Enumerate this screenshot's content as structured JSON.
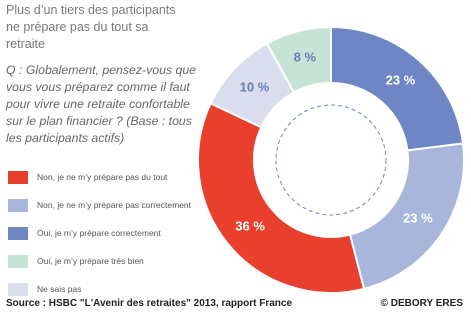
{
  "chart_data": {
    "type": "pie",
    "title": "Plus d’un tiers des participants ne prépare pas du tout sa retraite",
    "subtitle": "Q : Globalement, pensez-vous que vous vous préparez comme il faut pour vivre une retraite confortable sur le plan financier ? (Base : tous les participants actifs)",
    "categories": [
      "Non, je ne m’y prépare pas du tout",
      "Non, je ne m’y prépare pas correctement",
      "Oui, je m’y prépare correctement",
      "Oui, je m’y prépare très bien",
      "Ne sais pas"
    ],
    "values": [
      36,
      23,
      23,
      8,
      10
    ],
    "value_labels": [
      "36 %",
      "23 %",
      "23 %",
      "8 %",
      "10 %"
    ],
    "colors": [
      "#e8402c",
      "#a8b6dc",
      "#6f86c4",
      "#c6e4d6",
      "#d9ddee"
    ],
    "source": "Source : HSBC \"L'Avenir des retraites\" 2013, rapport France",
    "copyright": "© DEBORY ERES"
  }
}
